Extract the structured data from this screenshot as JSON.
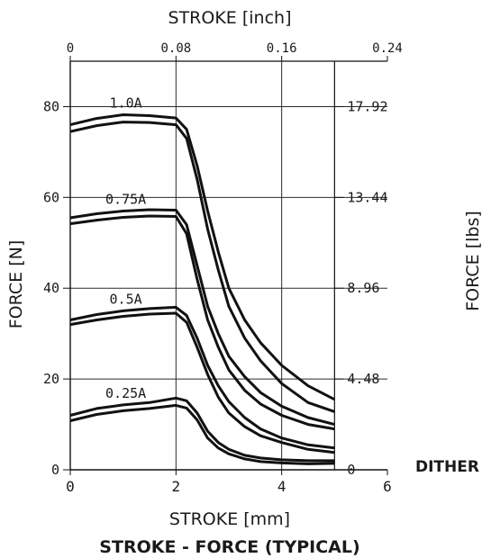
{
  "chart_data": {
    "type": "line",
    "title": "STROKE - FORCE (TYPICAL)",
    "xlabel": "STROKE [mm]",
    "ylabel": "FORCE [N]",
    "x2label": "STROKE [inch]",
    "y2label": "FORCE [lbs]",
    "xlim": [
      0,
      6
    ],
    "ylim": [
      0,
      90
    ],
    "x2lim": [
      0,
      0.24
    ],
    "y2lim": [
      0,
      20.16
    ],
    "xticks": [
      "0",
      "2",
      "4",
      "6"
    ],
    "yticks": [
      "0",
      "20",
      "40",
      "60",
      "80"
    ],
    "x2ticks": [
      "0",
      "0.08",
      "0.16",
      "0.24"
    ],
    "y2ticks": [
      "0",
      "4.48",
      "8.96",
      "13.44",
      "17.92"
    ],
    "extra_label": "DITHER",
    "grid": true,
    "series": [
      {
        "name": "1.0A",
        "upper": [
          [
            0,
            76
          ],
          [
            0.5,
            77.4
          ],
          [
            1,
            78.2
          ],
          [
            1.5,
            78
          ],
          [
            2,
            77.5
          ],
          [
            2.2,
            75
          ],
          [
            2.4,
            67
          ],
          [
            2.6,
            57
          ],
          [
            2.8,
            48
          ],
          [
            3,
            40
          ],
          [
            3.3,
            33
          ],
          [
            3.6,
            28
          ],
          [
            4,
            23
          ],
          [
            4.5,
            18.5
          ],
          [
            5,
            15.5
          ]
        ],
        "lower": [
          [
            0,
            74.5
          ],
          [
            0.5,
            75.8
          ],
          [
            1,
            76.6
          ],
          [
            1.5,
            76.5
          ],
          [
            2,
            76
          ],
          [
            2.2,
            73
          ],
          [
            2.4,
            64
          ],
          [
            2.6,
            53
          ],
          [
            2.8,
            44
          ],
          [
            3,
            36
          ],
          [
            3.3,
            29
          ],
          [
            3.6,
            24
          ],
          [
            4,
            19
          ],
          [
            4.5,
            14.8
          ],
          [
            5,
            12.8
          ]
        ]
      },
      {
        "name": "0.75A",
        "upper": [
          [
            0,
            55.5
          ],
          [
            0.5,
            56.4
          ],
          [
            1,
            57
          ],
          [
            1.5,
            57.3
          ],
          [
            2,
            57.2
          ],
          [
            2.2,
            54
          ],
          [
            2.4,
            45
          ],
          [
            2.6,
            36
          ],
          [
            2.8,
            30
          ],
          [
            3,
            25
          ],
          [
            3.3,
            20.5
          ],
          [
            3.6,
            17
          ],
          [
            4,
            14
          ],
          [
            4.5,
            11.5
          ],
          [
            5,
            10
          ]
        ],
        "lower": [
          [
            0,
            54.2
          ],
          [
            0.5,
            55
          ],
          [
            1,
            55.6
          ],
          [
            1.5,
            55.9
          ],
          [
            2,
            55.8
          ],
          [
            2.2,
            52
          ],
          [
            2.4,
            42
          ],
          [
            2.6,
            33
          ],
          [
            2.8,
            27
          ],
          [
            3,
            22
          ],
          [
            3.3,
            17.5
          ],
          [
            3.6,
            14.5
          ],
          [
            4,
            12
          ],
          [
            4.5,
            10
          ],
          [
            5,
            9
          ]
        ]
      },
      {
        "name": "0.5A",
        "upper": [
          [
            0,
            33
          ],
          [
            0.5,
            34.2
          ],
          [
            1,
            35
          ],
          [
            1.5,
            35.5
          ],
          [
            2,
            35.8
          ],
          [
            2.2,
            34
          ],
          [
            2.4,
            29
          ],
          [
            2.6,
            23
          ],
          [
            2.8,
            18.5
          ],
          [
            3,
            15
          ],
          [
            3.3,
            11.5
          ],
          [
            3.6,
            9
          ],
          [
            4,
            7
          ],
          [
            4.5,
            5.5
          ],
          [
            5,
            4.8
          ]
        ],
        "lower": [
          [
            0,
            32
          ],
          [
            0.5,
            33
          ],
          [
            1,
            33.8
          ],
          [
            1.5,
            34.3
          ],
          [
            2,
            34.5
          ],
          [
            2.2,
            32.5
          ],
          [
            2.4,
            27
          ],
          [
            2.6,
            21
          ],
          [
            2.8,
            16
          ],
          [
            3,
            12.5
          ],
          [
            3.3,
            9.5
          ],
          [
            3.6,
            7.5
          ],
          [
            4,
            6
          ],
          [
            4.5,
            4.5
          ],
          [
            5,
            3.8
          ]
        ]
      },
      {
        "name": "0.25A",
        "upper": [
          [
            0,
            12
          ],
          [
            0.5,
            13.5
          ],
          [
            1,
            14.3
          ],
          [
            1.5,
            14.8
          ],
          [
            2,
            15.8
          ],
          [
            2.2,
            15.2
          ],
          [
            2.4,
            12.5
          ],
          [
            2.6,
            8.5
          ],
          [
            2.8,
            6
          ],
          [
            3,
            4.5
          ],
          [
            3.3,
            3.2
          ],
          [
            3.6,
            2.6
          ],
          [
            4,
            2.2
          ],
          [
            4.5,
            2
          ],
          [
            5,
            2
          ]
        ],
        "lower": [
          [
            0,
            10.8
          ],
          [
            0.5,
            12.2
          ],
          [
            1,
            13
          ],
          [
            1.5,
            13.5
          ],
          [
            2,
            14.2
          ],
          [
            2.2,
            13.6
          ],
          [
            2.4,
            11
          ],
          [
            2.6,
            7
          ],
          [
            2.8,
            4.8
          ],
          [
            3,
            3.5
          ],
          [
            3.3,
            2.4
          ],
          [
            3.6,
            1.8
          ],
          [
            4,
            1.5
          ],
          [
            4.5,
            1.3
          ],
          [
            5,
            1.4
          ]
        ]
      }
    ]
  }
}
